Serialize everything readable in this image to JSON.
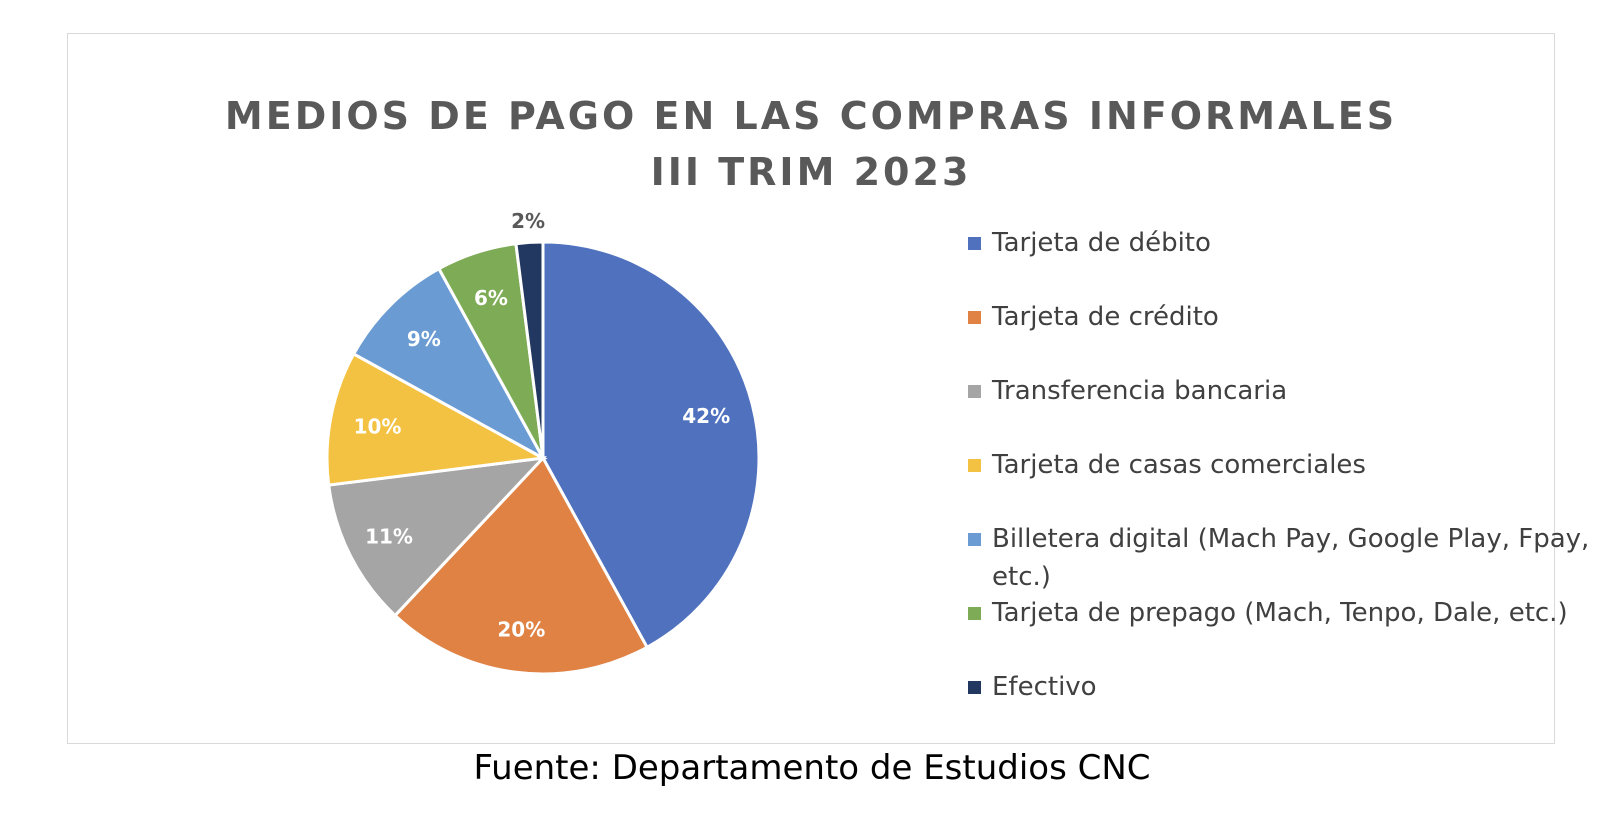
{
  "chart_data": {
    "type": "pie",
    "title": "MEDIOS DE PAGO EN LAS COMPRAS INFORMALES",
    "subtitle": "III TRIM 2023",
    "legend_position": "right",
    "categories": [
      "Tarjeta de débito",
      "Tarjeta de crédito",
      "Transferencia bancaria",
      "Tarjeta de casas comerciales",
      "Billetera digital (Mach Pay, Google Play, Fpay, etc.)",
      "Tarjeta de prepago (Mach, Tenpo, Dale, etc.)",
      "Efectivo"
    ],
    "values": [
      42,
      20,
      11,
      10,
      9,
      6,
      2
    ],
    "labels": [
      "42%",
      "20%",
      "11%",
      "10%",
      "9%",
      "6%",
      "2%"
    ],
    "colors": [
      "#4f71be",
      "#df8244",
      "#a5a5a5",
      "#f4c242",
      "#6a9bd3",
      "#7eab55",
      "#223860"
    ]
  },
  "source": "Fuente: Departamento de Estudios CNC"
}
